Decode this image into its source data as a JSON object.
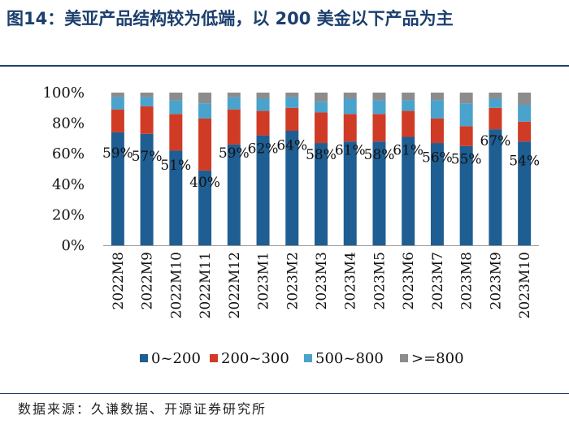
{
  "title": "图14：美亚产品结构较为低端，以 200 美金以下产品为主",
  "source": "数据来源：久谦数据、开源证券研究所",
  "colors": {
    "title": "#1c3f6e",
    "s1": "#1f5e92",
    "s2": "#d03b26",
    "s3": "#4aa3cc",
    "s4": "#8c8c8c"
  },
  "chart_data": {
    "type": "bar",
    "stacked": true,
    "percent_axis": true,
    "ylim": [
      0,
      100
    ],
    "yticks": [
      "0%",
      "20%",
      "40%",
      "60%",
      "80%",
      "100%"
    ],
    "categories": [
      "2022M8",
      "2022M9",
      "2022M10",
      "2022M11",
      "2022M12",
      "2023M1",
      "2023M2",
      "2023M3",
      "2023M4",
      "2023M5",
      "2023M6",
      "2023M7",
      "2023M8",
      "2023M9",
      "2023M10"
    ],
    "series": [
      {
        "name": "0~200",
        "values": [
          74,
          73,
          62,
          49,
          66,
          72,
          75,
          67,
          68,
          68,
          71,
          67,
          65,
          76,
          68
        ]
      },
      {
        "name": "200~300",
        "values": [
          15,
          18,
          24,
          34,
          23,
          16,
          15,
          20,
          18,
          18,
          17,
          16,
          13,
          14,
          13
        ]
      },
      {
        "name": "500~800",
        "values": [
          8,
          6,
          9,
          10,
          8,
          8,
          7,
          7,
          10,
          9,
          7,
          12,
          15,
          6,
          11
        ]
      },
      {
        "name": ">=800",
        "values": [
          3,
          3,
          5,
          7,
          3,
          4,
          3,
          6,
          4,
          5,
          5,
          5,
          7,
          4,
          8
        ]
      }
    ],
    "data_labels": [
      "59%",
      "57%",
      "51%",
      "40%",
      "59%",
      "62%",
      "64%",
      "58%",
      "61%",
      "58%",
      "61%",
      "56%",
      "55%",
      "67%",
      "54%"
    ],
    "legend_position": "bottom"
  }
}
